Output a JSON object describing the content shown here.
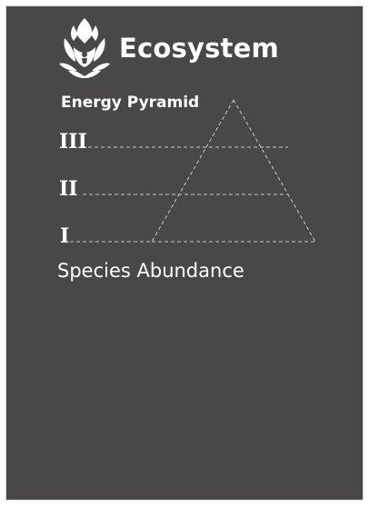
{
  "header": {
    "logo_icon": "lotus-emblem-icon",
    "title": "Ecosystem"
  },
  "diagram": {
    "subtitle": "Energy Pyramid",
    "levels": [
      {
        "numeral": "III"
      },
      {
        "numeral": "II"
      },
      {
        "numeral": "I"
      }
    ],
    "footer": "Species Abundance"
  },
  "colors": {
    "background": "#4a4748",
    "text": "#ffffff",
    "dashed_lines": "#c8c8c8"
  }
}
